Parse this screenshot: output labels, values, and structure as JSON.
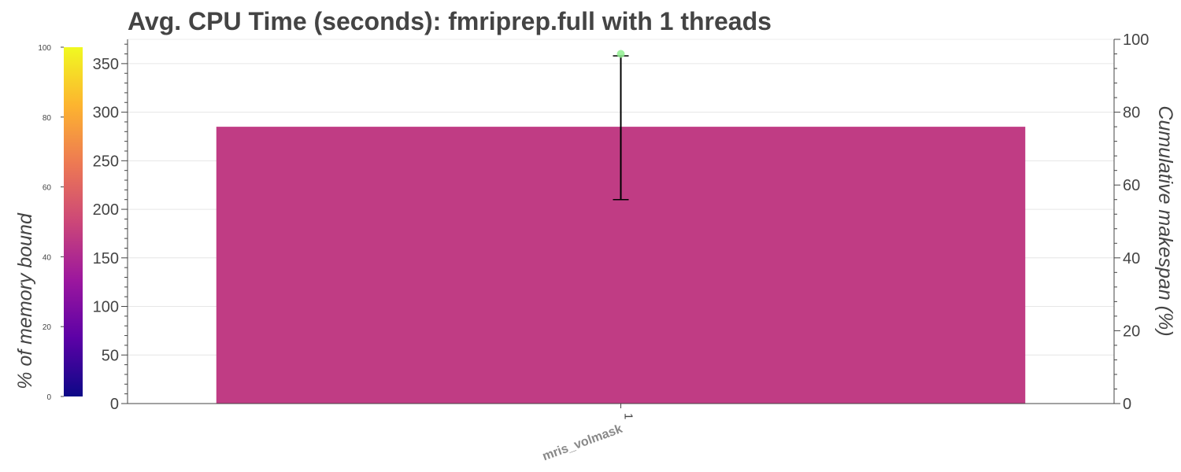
{
  "chart_data": {
    "type": "bar",
    "title": "Avg. CPU Time (seconds): fmriprep.full with 1 threads",
    "categories": [
      "mris_volmask"
    ],
    "category_ticks": [
      "1"
    ],
    "values": [
      285
    ],
    "error_bars": [
      {
        "low": 210,
        "high": 358
      }
    ],
    "cumulative_makespan_points": [
      96
    ],
    "memory_bound_percent": [
      45
    ],
    "bar_color": "#c03c84",
    "marker_color": "#90ee90",
    "ylim": [
      0,
      375
    ],
    "y_ticks": [
      0,
      50,
      100,
      150,
      200,
      250,
      300,
      350
    ],
    "y2label": "Cumulative makespan (%)",
    "y2lim": [
      0,
      100
    ],
    "y2_ticks": [
      0,
      20,
      40,
      60,
      80,
      100
    ],
    "colorbar": {
      "label": "% of memory bound",
      "range": [
        0,
        100
      ],
      "ticks": [
        0,
        20,
        40,
        60,
        80,
        100
      ],
      "colorscale": [
        "#0d0887",
        "#5c01a6",
        "#9c179e",
        "#cc4778",
        "#ed7953",
        "#fdb42f",
        "#f0f921"
      ]
    },
    "grid": true
  }
}
